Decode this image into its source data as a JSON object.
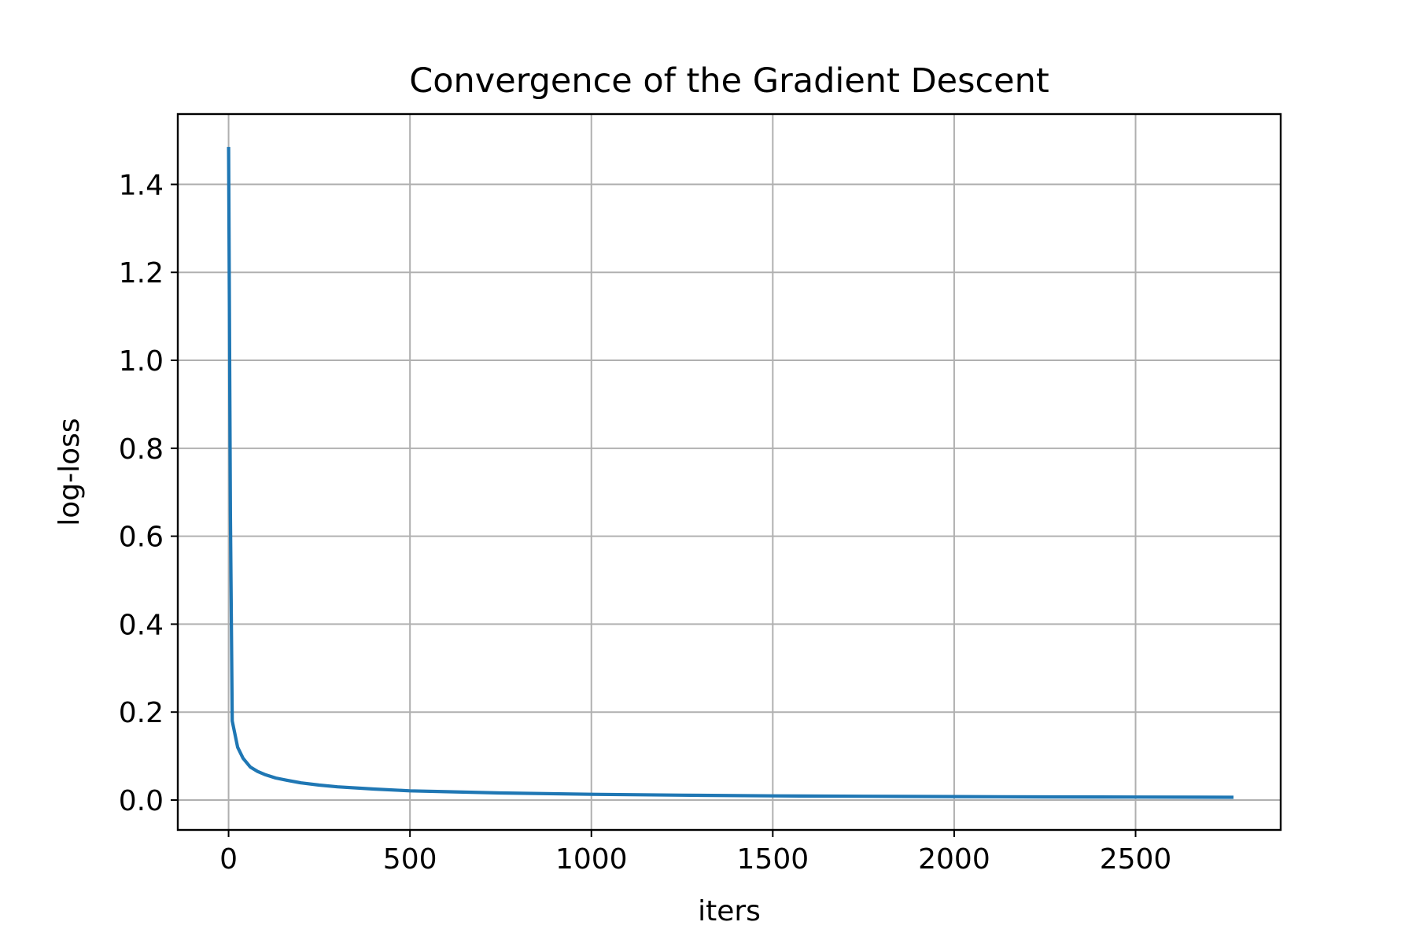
{
  "chart_data": {
    "type": "line",
    "title": "Convergence of the Gradient Descent",
    "xlabel": "iters",
    "ylabel": "log-loss",
    "xlim": [
      -140,
      2900
    ],
    "ylim": [
      -0.068,
      1.56
    ],
    "xticks": [
      0,
      500,
      1000,
      1500,
      2000,
      2500
    ],
    "xtick_labels": [
      "0",
      "500",
      "1000",
      "1500",
      "2000",
      "2500"
    ],
    "yticks": [
      0.0,
      0.2,
      0.4,
      0.6,
      0.8,
      1.0,
      1.2,
      1.4
    ],
    "ytick_labels": [
      "0.0",
      "0.2",
      "0.4",
      "0.6",
      "0.8",
      "1.0",
      "1.2",
      "1.4"
    ],
    "grid": true,
    "series": [
      {
        "color": "#1f77b4",
        "x": [
          0,
          5,
          10,
          25,
          40,
          60,
          80,
          100,
          130,
          160,
          200,
          250,
          300,
          400,
          500,
          600,
          750,
          1000,
          1250,
          1500,
          1750,
          2000,
          2250,
          2500,
          2770
        ],
        "y": [
          1.485,
          0.65,
          0.18,
          0.12,
          0.095,
          0.075,
          0.065,
          0.058,
          0.05,
          0.045,
          0.039,
          0.034,
          0.03,
          0.025,
          0.021,
          0.019,
          0.016,
          0.013,
          0.011,
          0.0095,
          0.0085,
          0.0078,
          0.0072,
          0.0067,
          0.0062
        ]
      }
    ]
  }
}
